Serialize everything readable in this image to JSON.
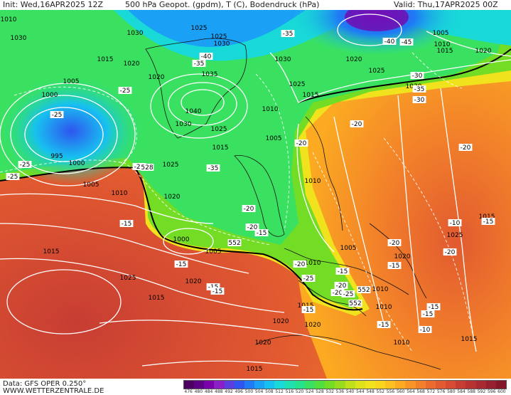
{
  "header": {
    "init": "Init: Wed,16APR2025 12Z",
    "title": "500 hPa Geopot. (gpdm), T (C), Bodendruck (hPa)",
    "valid": "Valid: Thu,17APR2025 00Z"
  },
  "footer": {
    "data_source": "Data: GFS OPER 0.250°",
    "website": "WWW.WETTERZENTRALE.DE"
  },
  "colorbar": {
    "labels": [
      "476",
      "480",
      "484",
      "488",
      "492",
      "496",
      "500",
      "504",
      "508",
      "512",
      "516",
      "520",
      "524",
      "528",
      "532",
      "536",
      "540",
      "544",
      "548",
      "552",
      "556",
      "560",
      "564",
      "568",
      "572",
      "576",
      "580",
      "584",
      "588",
      "592",
      "596",
      "600"
    ],
    "colors": [
      "#4b0062",
      "#5e0086",
      "#7a00aa",
      "#8a1fc8",
      "#5a3ee0",
      "#2f55f0",
      "#1e7bf5",
      "#1aa0f5",
      "#17c0f0",
      "#19d8d8",
      "#1ee0b0",
      "#26e28a",
      "#3ae060",
      "#52de3c",
      "#73dc25",
      "#98dc1d",
      "#bfe01a",
      "#dde21a",
      "#f0e21c",
      "#fad51e",
      "#fcc020",
      "#fbaa22",
      "#f89526",
      "#f2802a",
      "#ea6b2d",
      "#e15a30",
      "#d64b32",
      "#c83d33",
      "#b83232",
      "#a82931",
      "#96202e",
      "#84182a"
    ]
  },
  "map": {
    "isobar_labels": [
      "1010",
      "1030",
      "1025",
      "1025",
      "1030",
      "1030",
      "1005",
      "1010",
      "1015",
      "1020",
      "1020",
      "1015",
      "1025",
      "1005",
      "1000",
      "1035",
      "1040",
      "1030",
      "1025",
      "1015",
      "1010",
      "1005",
      "1015",
      "1030",
      "1025",
      "1020",
      "1020",
      "1025",
      "1030",
      "995",
      "1000",
      "1010",
      "1005",
      "1010",
      "1020",
      "1010",
      "1015",
      "1000",
      "1005",
      "1025",
      "1020",
      "1015",
      "1005",
      "1010",
      "1015",
      "1020",
      "1020",
      "1010",
      "1020",
      "1015",
      "1025",
      "1020",
      "1010",
      "1015",
      "1015"
    ],
    "temp_labels": [
      "-35",
      "-40",
      "-40",
      "-35",
      "-45",
      "-30",
      "-35",
      "-30",
      "-25",
      "-25",
      "-25",
      "-25",
      "-25",
      "-20",
      "-20",
      "-20",
      "-35",
      "-20",
      "-15",
      "-20",
      "-15",
      "-20",
      "-15",
      "-20",
      "-15",
      "-25",
      "-20",
      "-25",
      "-15",
      "-15",
      "-15",
      "-15",
      "-15",
      "-10",
      "-10",
      "-15",
      "-20",
      "-15",
      "-20",
      "-15"
    ],
    "contour_labels": [
      "528",
      "552",
      "552",
      "552"
    ]
  }
}
